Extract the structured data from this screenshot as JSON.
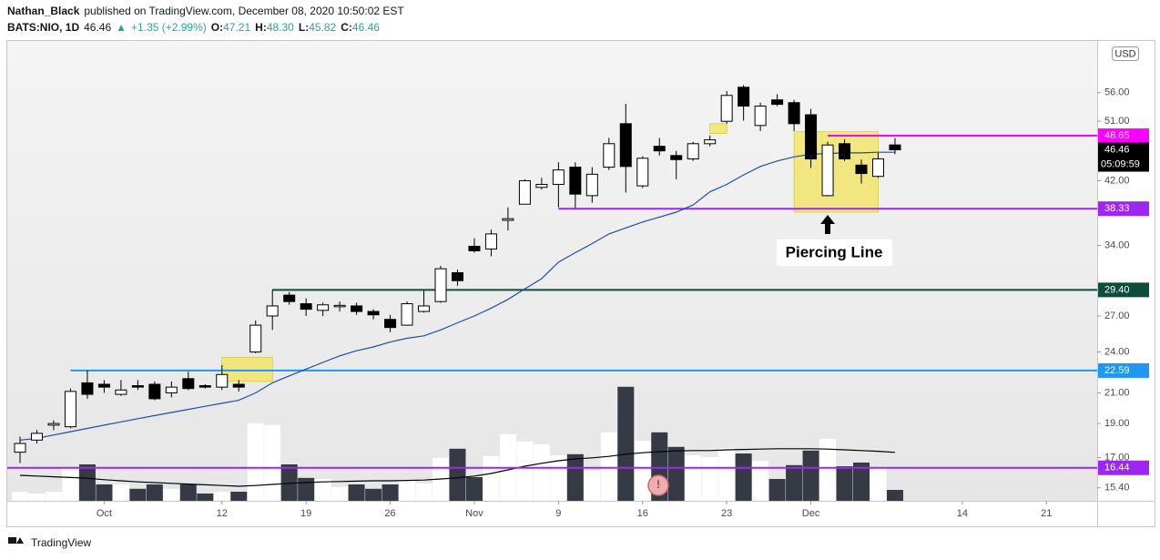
{
  "header": {
    "author": "Nathan_Black",
    "published": "published on TradingView.com, December 08, 2020 10:50:02 EST",
    "symbol": "BATS:NIO, 1D",
    "last": "46.46",
    "change": "+1.35 (+2.99%)",
    "ohlc": [
      {
        "label": "O:",
        "value": "47.21"
      },
      {
        "label": "H:",
        "value": "48.30"
      },
      {
        "label": "L:",
        "value": "45.82"
      },
      {
        "label": "C:",
        "value": "46.46"
      }
    ]
  },
  "footer": {
    "brand": "TradingView"
  },
  "chart_data": {
    "type": "candlestick",
    "log_scale": true,
    "grid": false,
    "currency": "USD",
    "countdown": "05:09:59",
    "categories": [
      "2020-09-24",
      "2020-09-25",
      "2020-09-28",
      "2020-09-29",
      "2020-09-30",
      "2020-10-01",
      "2020-10-02",
      "2020-10-05",
      "2020-10-06",
      "2020-10-07",
      "2020-10-08",
      "2020-10-09",
      "2020-10-12",
      "2020-10-13",
      "2020-10-14",
      "2020-10-15",
      "2020-10-16",
      "2020-10-19",
      "2020-10-20",
      "2020-10-21",
      "2020-10-22",
      "2020-10-23",
      "2020-10-26",
      "2020-10-27",
      "2020-10-28",
      "2020-10-29",
      "2020-10-30",
      "2020-11-02",
      "2020-11-03",
      "2020-11-04",
      "2020-11-05",
      "2020-11-06",
      "2020-11-09",
      "2020-11-10",
      "2020-11-11",
      "2020-11-12",
      "2020-11-13",
      "2020-11-16",
      "2020-11-17",
      "2020-11-18",
      "2020-11-19",
      "2020-11-20",
      "2020-11-23",
      "2020-11-24",
      "2020-11-25",
      "2020-11-27",
      "2020-11-30",
      "2020-12-01",
      "2020-12-02",
      "2020-12-03",
      "2020-12-04",
      "2020-12-07",
      "2020-12-08"
    ],
    "open": [
      17.3,
      18.0,
      18.9,
      18.8,
      21.7,
      21.6,
      20.9,
      21.5,
      21.6,
      21.0,
      22.0,
      21.5,
      21.4,
      21.6,
      24.0,
      27.0,
      28.9,
      28.1,
      27.5,
      27.9,
      27.9,
      27.4,
      26.7,
      26.2,
      27.4,
      28.3,
      31.1,
      33.9,
      33.6,
      36.9,
      38.9,
      41.1,
      41.5,
      43.9,
      40.0,
      43.9,
      50.6,
      41.3,
      47.0,
      45.6,
      45.1,
      47.4,
      51.0,
      57.0,
      50.3,
      54.7,
      54.2,
      52.1,
      40.0,
      47.4,
      44.2,
      42.6,
      47.21
    ],
    "high": [
      18.2,
      18.6,
      19.2,
      21.3,
      22.6,
      21.9,
      21.9,
      21.9,
      21.8,
      21.8,
      22.5,
      21.6,
      23.0,
      21.9,
      26.6,
      29.4,
      29.2,
      28.6,
      28.2,
      28.3,
      28.2,
      27.6,
      27.1,
      28.3,
      29.4,
      31.8,
      31.4,
      34.8,
      35.8,
      38.5,
      42.2,
      42.4,
      44.6,
      44.6,
      43.9,
      48.3,
      54.0,
      45.5,
      48.3,
      46.3,
      47.7,
      48.7,
      56.3,
      57.4,
      54.2,
      55.7,
      54.7,
      53.1,
      47.7,
      48.1,
      45.0,
      46.0,
      48.3
    ],
    "low": [
      16.7,
      17.8,
      18.6,
      18.7,
      20.6,
      21.0,
      20.8,
      21.2,
      20.5,
      20.7,
      21.2,
      21.3,
      21.2,
      21.1,
      23.9,
      25.8,
      28.0,
      27.0,
      27.0,
      27.4,
      27.1,
      26.7,
      25.6,
      26.2,
      27.3,
      28.2,
      29.8,
      33.2,
      32.8,
      35.7,
      38.9,
      40.8,
      38.5,
      38.4,
      39.1,
      43.5,
      40.4,
      41.0,
      45.6,
      42.2,
      44.8,
      47.0,
      50.6,
      51.1,
      49.4,
      53.6,
      49.4,
      43.8,
      39.9,
      44.8,
      41.6,
      42.4,
      45.82
    ],
    "close": [
      17.8,
      18.4,
      19.0,
      21.1,
      20.9,
      21.4,
      21.2,
      21.4,
      20.6,
      21.4,
      21.3,
      21.4,
      22.3,
      21.4,
      26.2,
      27.9,
      28.3,
      27.6,
      28.0,
      27.95,
      27.4,
      27.1,
      26.0,
      28.1,
      27.9,
      31.5,
      30.3,
      33.4,
      35.3,
      37.1,
      42.0,
      41.5,
      43.5,
      40.2,
      42.9,
      47.4,
      44.0,
      45.2,
      46.3,
      45.0,
      47.4,
      48.0,
      55.5,
      53.6,
      53.6,
      53.9,
      50.6,
      45.1,
      47.2,
      45.1,
      43.0,
      45.11,
      46.46
    ],
    "volume": [
      25,
      20,
      25,
      88,
      100,
      45,
      45,
      33,
      45,
      33,
      45,
      20,
      25,
      25,
      213,
      208,
      100,
      63,
      60,
      38,
      45,
      33,
      45,
      58,
      48,
      118,
      143,
      65,
      123,
      183,
      163,
      155,
      125,
      128,
      83,
      188,
      313,
      165,
      188,
      148,
      125,
      120,
      145,
      130,
      110,
      60,
      98,
      138,
      170,
      95,
      105,
      90,
      30
    ],
    "ma": [
      18.0,
      18.1,
      18.3,
      18.5,
      18.7,
      18.9,
      19.1,
      19.3,
      19.5,
      19.7,
      19.9,
      20.1,
      20.3,
      20.5,
      21.0,
      21.7,
      22.2,
      22.7,
      23.2,
      23.7,
      24.1,
      24.4,
      24.8,
      25.1,
      25.3,
      25.8,
      26.4,
      27.0,
      27.7,
      28.5,
      29.5,
      30.5,
      32.2,
      33.2,
      34.2,
      35.3,
      36.0,
      36.7,
      37.3,
      37.9,
      38.8,
      40.5,
      41.5,
      42.8,
      44.0,
      44.8,
      45.4,
      45.8,
      45.9,
      46.0,
      46.0,
      46.1,
      46.1
    ],
    "volume_ma": [
      70,
      68,
      66,
      64,
      62,
      58,
      55,
      52,
      50,
      48,
      46,
      44,
      42,
      40,
      42,
      45,
      48,
      50,
      52,
      53,
      54,
      55,
      55,
      56,
      57,
      60,
      63,
      68,
      75,
      85,
      95,
      103,
      110,
      115,
      118,
      122,
      128,
      132,
      135,
      137,
      138,
      138,
      140,
      141,
      142,
      143,
      143,
      143,
      142,
      140,
      138,
      136,
      133
    ],
    "colors": {
      "up": "#ffffff",
      "down": "#000000",
      "volume_up": "#ffffff",
      "volume_down": "#363a45",
      "ma": "#1e4fa8",
      "volume_ma": "#000000"
    },
    "ylim": [
      14.76,
      66.3
    ],
    "volume_ylim": [
      0,
      400
    ],
    "yticks": [
      {
        "value": 15.4,
        "label": "15.40"
      },
      {
        "value": 17,
        "label": "17.00"
      },
      {
        "value": 19,
        "label": "19.00"
      },
      {
        "value": 21,
        "label": "21.00"
      },
      {
        "value": 24,
        "label": "24.00"
      },
      {
        "value": 27,
        "label": "27.00"
      },
      {
        "value": 34,
        "label": "34.00"
      },
      {
        "value": 42,
        "label": "42.00"
      },
      {
        "value": 51,
        "label": "51.00"
      },
      {
        "value": 56,
        "label": "56.00"
      }
    ],
    "xticks": [
      {
        "value": "2020-10-01",
        "label": "Oct"
      },
      {
        "value": "2020-10-12",
        "label": "12"
      },
      {
        "value": "2020-10-19",
        "label": "19"
      },
      {
        "value": "2020-10-26",
        "label": "26"
      },
      {
        "value": "2020-11-02",
        "label": "Nov"
      },
      {
        "value": "2020-11-09",
        "label": "9"
      },
      {
        "value": "2020-11-16",
        "label": "16"
      },
      {
        "value": "2020-11-23",
        "label": "23"
      },
      {
        "value": "2020-12-01",
        "label": "Dec"
      },
      {
        "value": "2020-12-14",
        "label": "14"
      },
      {
        "value": "2020-12-21",
        "label": "21"
      }
    ],
    "hlines": [
      {
        "value": 48.65,
        "color": "#ff00ff",
        "from": "2020-12-02"
      },
      {
        "value": 38.33,
        "color": "#9c27f0",
        "from": "2020-11-09"
      },
      {
        "value": 29.4,
        "label": "29.40",
        "color": "#0d4d3c",
        "from": "2020-10-15"
      },
      {
        "value": 22.59,
        "color": "#2196f3",
        "from": "2020-09-29"
      },
      {
        "value": 16.44,
        "color": "#9c27f0"
      }
    ],
    "boxes": [
      {
        "from": "2020-11-30",
        "to": "2020-12-07",
        "low": 37.9,
        "high": 49.3
      },
      {
        "from": "2020-10-12",
        "to": "2020-10-15",
        "low": 21.8,
        "high": 23.6
      },
      {
        "from": "2020-11-20",
        "to": "2020-11-23",
        "low": 49.0,
        "high": 50.6
      }
    ],
    "annotation": {
      "text": "Piercing Line",
      "date": "2020-12-02"
    }
  }
}
